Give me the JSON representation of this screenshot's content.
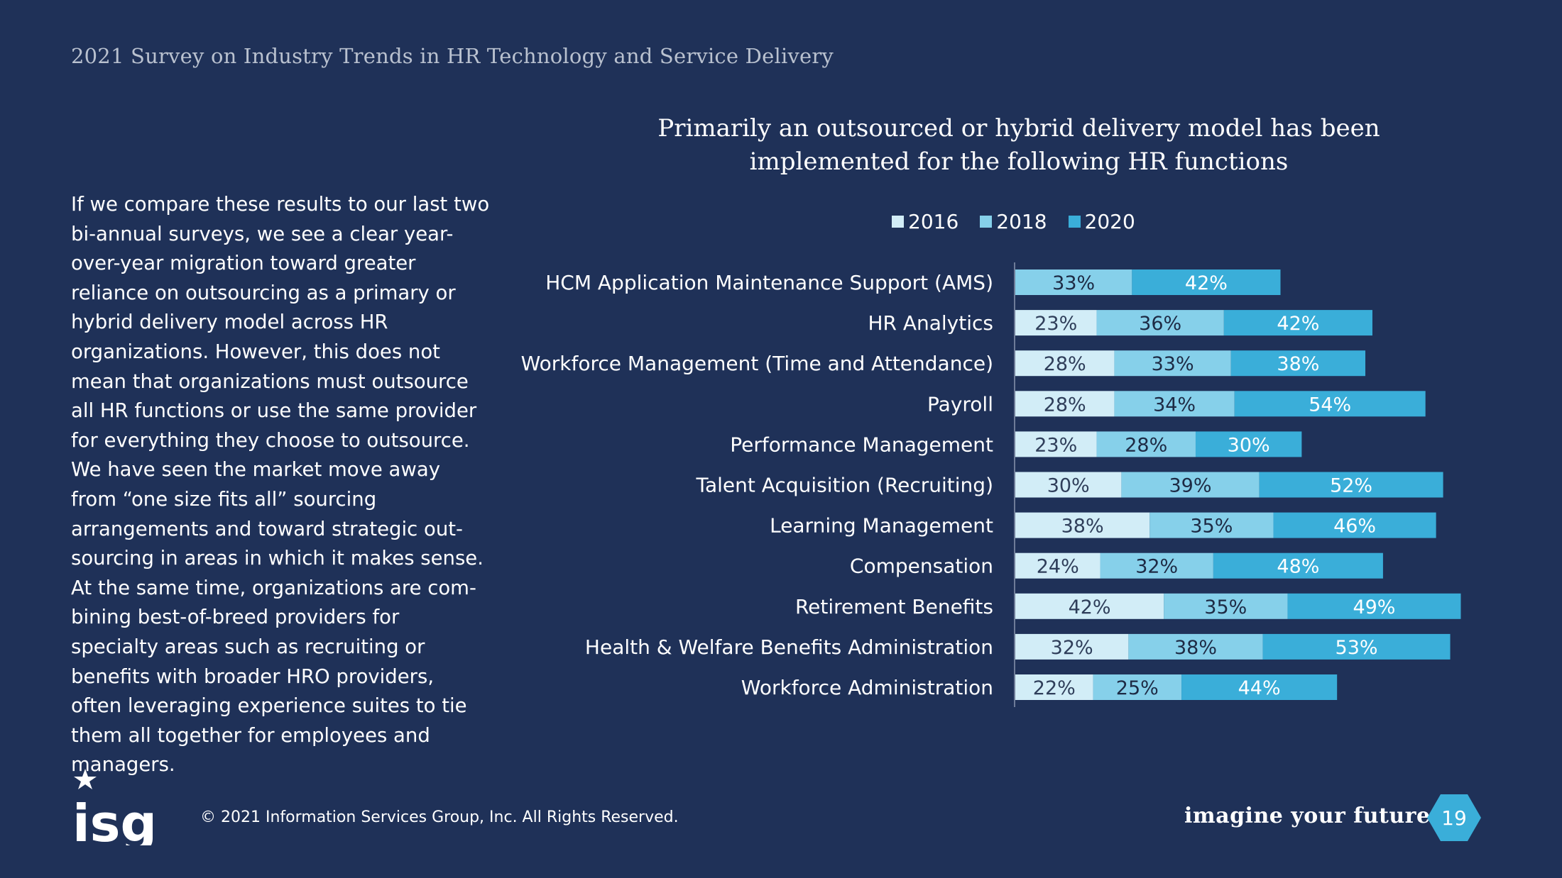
{
  "header": {
    "title": "2021 Survey on Industry Trends in HR Technology and Service Delivery"
  },
  "intro_text": "If we compare these results to our last two bi-annual surveys, we see a clear year-over-year migration toward greater reliance on outsourcing as a primary or hybrid delivery model across HR organizations. However, this does not mean that organizations must outsource all HR functions or use the same provider for everything they choose to outsource. We have seen the market move away from “one size fits all” sourcing arrangements and toward strategic out-sourcing in areas in which it makes sense. At the same time, organizations are com-bining best-of-breed providers for specialty areas such as recruiting or benefits with broader HRO providers, often leveraging experience suites to tie them all together for employees and managers.",
  "chart_data": {
    "type": "bar",
    "orientation": "horizontal",
    "stacked": true,
    "title_lines": [
      "Primarily an outsourced or hybrid delivery model has been",
      "implemented for the following HR functions"
    ],
    "legend_position": "top",
    "categories": [
      "HCM Application Maintenance Support (AMS)",
      "HR Analytics",
      "Workforce Management (Time and Attendance)",
      "Payroll",
      "Performance Management",
      "Talent Acquisition (Recruiting)",
      "Learning Management",
      "Compensation",
      "Retirement Benefits",
      "Health & Welfare Benefits Administration",
      "Workforce Administration"
    ],
    "series": [
      {
        "name": "2016",
        "color": "#d2edf7",
        "text_color": "#2f3e5a",
        "values": [
          null,
          23,
          28,
          28,
          23,
          30,
          38,
          24,
          42,
          32,
          22
        ]
      },
      {
        "name": "2018",
        "color": "#86d0ea",
        "text_color": "#1d2a44",
        "values": [
          33,
          36,
          33,
          34,
          28,
          39,
          35,
          32,
          35,
          38,
          25
        ]
      },
      {
        "name": "2020",
        "color": "#3aaed9",
        "text_color": "#ffffff",
        "values": [
          42,
          42,
          38,
          54,
          30,
          52,
          46,
          48,
          49,
          53,
          44
        ]
      }
    ],
    "value_suffix": "%",
    "grid": false
  },
  "footer": {
    "copyright": "© 2021 Information Services Group, Inc. All Rights Reserved.",
    "logo_text": "isg",
    "tagline": "imagine your future®",
    "page_number": "19"
  },
  "colors": {
    "background": "#1f3158",
    "accent": "#3aaed9"
  }
}
